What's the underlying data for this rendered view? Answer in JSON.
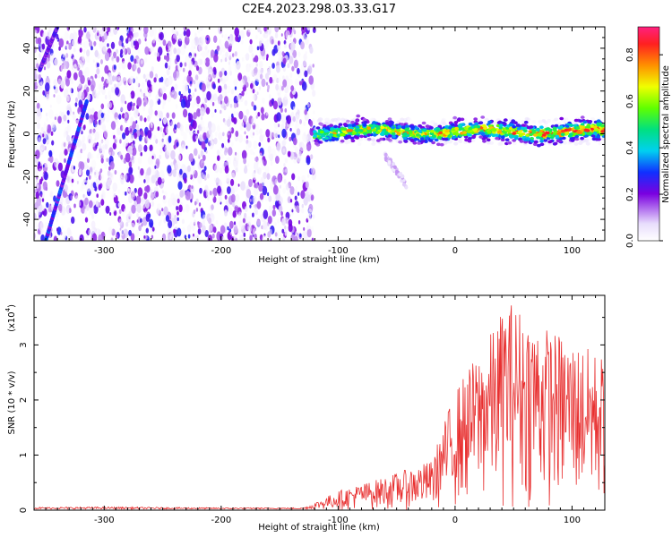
{
  "chart_data": [
    {
      "type": "heatmap",
      "title": "C2E4.2023.298.03.33.G17",
      "xlabel": "Height of straight line (km)",
      "ylabel": "Frequency (Hz)",
      "xlim": [
        -360,
        128
      ],
      "ylim": [
        -50,
        50
      ],
      "x_ticks": [
        -300,
        -200,
        -100,
        0,
        100
      ],
      "y_ticks": [
        -40,
        -20,
        0,
        20,
        40
      ],
      "colorbar": {
        "label": "Normalized spectral amplitude",
        "range": [
          0.0,
          0.92
        ],
        "ticks": [
          0.0,
          0.2,
          0.4,
          0.6,
          0.8
        ]
      },
      "features": {
        "noise_region_x": [
          -360,
          -120
        ],
        "noise_level": 0.12,
        "signal_track": {
          "x_range": [
            -120,
            128
          ],
          "frequency_center": 1,
          "peak_amplitude": 0.85
        },
        "branch": {
          "x": [
            -60,
            -40
          ],
          "frequency": [
            -10,
            -25
          ],
          "amplitude": 0.1
        },
        "diagonal_streaks": [
          {
            "x0": -350,
            "f0": -50,
            "x1": -315,
            "f1": 15,
            "amplitude": 0.3
          },
          {
            "x0": -355,
            "f0": 30,
            "x1": -340,
            "f1": 50,
            "amplitude": 0.25
          }
        ]
      }
    },
    {
      "type": "line",
      "xlabel": "Height of straight line (km)",
      "ylabel": "SNR (10 * v/v)",
      "scale_label": "(x10",
      "scale_exp": "4",
      "scale_close": ")",
      "xlim": [
        -360,
        128
      ],
      "ylim": [
        0,
        3.9
      ],
      "x_ticks": [
        -300,
        -200,
        -100,
        0,
        100
      ],
      "y_ticks": [
        0,
        1,
        2,
        3
      ],
      "series": [
        {
          "name": "SNR",
          "color": "#e83030",
          "envelope": [
            [
              -360,
              0.04
            ],
            [
              -300,
              0.05
            ],
            [
              -200,
              0.03
            ],
            [
              -130,
              0.03
            ],
            [
              -100,
              0.35
            ],
            [
              -60,
              0.6
            ],
            [
              -20,
              0.9
            ],
            [
              0,
              2.2
            ],
            [
              30,
              3.2
            ],
            [
              45,
              3.85
            ],
            [
              80,
              3.3
            ],
            [
              128,
              2.8
            ]
          ]
        }
      ]
    }
  ]
}
